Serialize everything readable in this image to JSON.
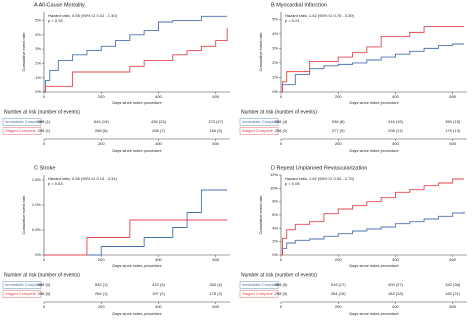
{
  "chart_data": [
    {
      "type": "line",
      "step": true,
      "title": "A  All-Cause Mortality",
      "annotation": "Hazard ratio, 0.55 (95% CI 0.41 - 1.40)",
      "p_value": "p = 0.15",
      "y_label": "Cumulative event rate",
      "x_label": "Days since index procedure",
      "x": [
        0,
        5,
        20,
        50,
        100,
        150,
        200,
        250,
        300,
        350,
        400,
        450,
        500,
        550,
        600,
        640
      ],
      "xlim": [
        0,
        650
      ],
      "xticks": [
        0,
        200,
        400,
        600
      ],
      "ylim": [
        0,
        5.6
      ],
      "yticks": [
        {
          "value": 0,
          "label": "0%"
        },
        {
          "value": 1,
          "label": "1%"
        },
        {
          "value": 2,
          "label": "2%"
        },
        {
          "value": 3,
          "label": "3%"
        },
        {
          "value": 4,
          "label": "4%"
        },
        {
          "value": 5,
          "label": "5%"
        }
      ],
      "series": [
        {
          "name": "Immediate Complete",
          "color": "#4a72b0",
          "values": [
            0,
            0.8,
            1.5,
            2.2,
            2.6,
            2.9,
            3.2,
            3.6,
            4.0,
            4.3,
            4.9,
            5.0,
            5.0,
            5.3,
            5.3,
            5.3
          ],
          "at_risk": [
            "598 (1)",
            "543 (19)",
            "436 (23)",
            "373 (27)"
          ]
        },
        {
          "name": "Staged Complete",
          "color": "#e0474c",
          "values": [
            0,
            0.4,
            0.4,
            0.4,
            1.4,
            1.4,
            1.4,
            1.4,
            1.8,
            2.2,
            2.2,
            2.6,
            2.9,
            3.2,
            3.6,
            4.5
          ],
          "at_risk": [
            "298 (1)",
            "268 (6)",
            "208 (7)",
            "184 (9)"
          ]
        }
      ],
      "risk_title": "Number at risk (number of events)",
      "risk_x_label": "Days since index procedure"
    },
    {
      "type": "line",
      "step": true,
      "title": "B  Myocardial Infarction",
      "annotation": "Hazard ratio, 1.62 (95% CI 0.76 - 3.39)",
      "p_value": "p = 0.21",
      "y_label": "Cumulative event rate",
      "x_label": "Days since index procedure",
      "x": [
        0,
        5,
        20,
        50,
        100,
        150,
        200,
        250,
        300,
        350,
        400,
        450,
        500,
        550,
        600,
        640
      ],
      "xlim": [
        0,
        650
      ],
      "xticks": [
        0,
        200,
        400,
        600
      ],
      "ylim": [
        0,
        5.5
      ],
      "yticks": [
        {
          "value": 0,
          "label": "0%"
        },
        {
          "value": 1,
          "label": "1%"
        },
        {
          "value": 2,
          "label": "2%"
        },
        {
          "value": 3,
          "label": "3%"
        },
        {
          "value": 4,
          "label": "4%"
        },
        {
          "value": 5,
          "label": "5%"
        }
      ],
      "series": [
        {
          "name": "Immediate Complete",
          "color": "#4a72b0",
          "values": [
            0,
            0.5,
            0.5,
            1.2,
            1.6,
            1.8,
            1.9,
            2.0,
            2.2,
            2.4,
            2.6,
            2.8,
            3.0,
            3.2,
            3.3,
            3.3
          ],
          "at_risk": [
            "598 (4)",
            "536 (8)",
            "416 (15)",
            "350 (15)"
          ]
        },
        {
          "name": "Staged Complete",
          "color": "#e0474c",
          "values": [
            0,
            0.7,
            1.4,
            1.4,
            2.1,
            2.1,
            2.4,
            2.7,
            3.1,
            3.8,
            3.8,
            4.1,
            4.5,
            4.5,
            4.5,
            4.5
          ],
          "at_risk": [
            "298 (2)",
            "277 (9)",
            "206 (11)",
            "179 (13)"
          ]
        }
      ],
      "risk_title": "Number at risk (number of events)",
      "risk_x_label": "Days since index procedure"
    },
    {
      "type": "line",
      "step": true,
      "title": "C  Stroke",
      "annotation": "Hazard ratio, 0.55 (95% CI 0.14 - 3.31)",
      "p_value": "p = 0.53",
      "y_label": "Cumulative event rate",
      "x_label": "Days since index procedure",
      "x": [
        0,
        5,
        20,
        50,
        100,
        150,
        200,
        250,
        300,
        350,
        400,
        450,
        500,
        550,
        600,
        640
      ],
      "xlim": [
        0,
        650
      ],
      "xticks": [
        0,
        200,
        400,
        600
      ],
      "ylim": [
        0,
        1.6
      ],
      "yticks": [
        {
          "value": 0,
          "label": "0%"
        },
        {
          "value": 0.5,
          "label": "0.5%"
        },
        {
          "value": 1,
          "label": "1.0%"
        },
        {
          "value": 1.5,
          "label": "1.5%"
        }
      ],
      "series": [
        {
          "name": "Immediate Complete",
          "color": "#4a72b0",
          "values": [
            0,
            0,
            0,
            0,
            0,
            0,
            0.17,
            0.17,
            0.17,
            0.35,
            0.35,
            0.55,
            0.85,
            1.3,
            1.3,
            1.3
          ],
          "at_risk": [
            "598 (0)",
            "532 (1)",
            "422 (3)",
            "363 (4)"
          ]
        },
        {
          "name": "Staged Complete",
          "color": "#e0474c",
          "values": [
            0,
            0,
            0,
            0,
            0,
            0.35,
            0.35,
            0.35,
            0.7,
            0.7,
            0.7,
            0.7,
            0.7,
            0.7,
            0.7,
            0.7
          ],
          "at_risk": [
            "298 (0)",
            "264 (1)",
            "197 (2)",
            "175 (2)"
          ]
        }
      ],
      "risk_title": "Number at risk (number of events)",
      "risk_x_label": "Days since index procedure"
    },
    {
      "type": "line",
      "step": true,
      "title": "D  Repeat Unplanned Revascularization",
      "annotation": "Hazard ratio, 1.62 (95% CI 0.94 - 2.79)",
      "p_value": "p = 0.08",
      "y_label": "Cumulative event rate",
      "x_label": "Days since index procedure",
      "x": [
        0,
        5,
        20,
        50,
        100,
        150,
        200,
        250,
        300,
        350,
        400,
        450,
        500,
        550,
        600,
        640
      ],
      "xlim": [
        0,
        650
      ],
      "xticks": [
        0,
        200,
        400,
        600
      ],
      "ylim": [
        0,
        12
      ],
      "yticks": [
        {
          "value": 0,
          "label": "0%"
        },
        {
          "value": 2,
          "label": "2%"
        },
        {
          "value": 4,
          "label": "4%"
        },
        {
          "value": 6,
          "label": "6%"
        },
        {
          "value": 8,
          "label": "8%"
        },
        {
          "value": 10,
          "label": "10%"
        },
        {
          "value": 12,
          "label": "12%"
        }
      ],
      "series": [
        {
          "name": "Immediate Complete",
          "color": "#4a72b0",
          "values": [
            0,
            1,
            1.8,
            2.2,
            2.4,
            2.8,
            3.2,
            3.6,
            3.9,
            4.2,
            4.7,
            5.0,
            5.4,
            5.8,
            6.3,
            6.5
          ],
          "at_risk": [
            "598 (0)",
            "519 (17)",
            "400 (27)",
            "342 (38)"
          ]
        },
        {
          "name": "Staged Complete",
          "color": "#e0474c",
          "values": [
            0,
            2.5,
            3.8,
            4.6,
            5.0,
            6.2,
            6.9,
            7.4,
            8.0,
            8.6,
            9.4,
            9.8,
            10.4,
            10.8,
            11.4,
            11.4
          ],
          "at_risk": [
            "298 (0)",
            "264 (15)",
            "183 (18)",
            "162 (21)"
          ]
        }
      ],
      "risk_title": "Number at risk (number of events)",
      "risk_x_label": "Days since index procedure"
    }
  ]
}
